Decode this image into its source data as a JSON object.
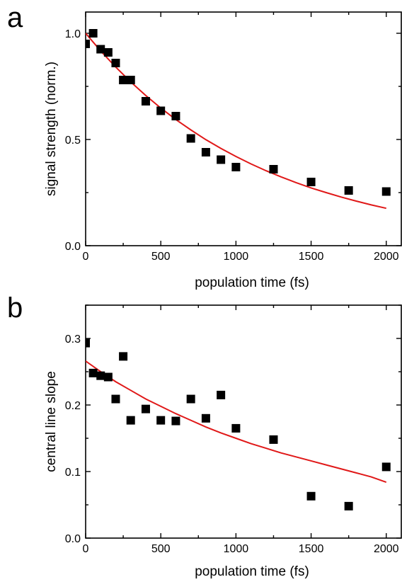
{
  "chart_data": [
    {
      "panel_label": "a",
      "type": "scatter",
      "xlabel": "population time (fs)",
      "ylabel": "signal strength (norm.)",
      "xlim": [
        0,
        2100
      ],
      "ylim": [
        0.0,
        1.1
      ],
      "x_ticks": [
        0,
        500,
        1000,
        1500,
        2000
      ],
      "x_tick_labels": [
        "0",
        "500",
        "1000",
        "1500",
        "2000"
      ],
      "y_ticks": [
        0.0,
        0.5,
        1.0
      ],
      "y_tick_labels": [
        "0.0",
        "0.5",
        "1.0"
      ],
      "grid": false,
      "legend": "none",
      "series": [
        {
          "kind": "points",
          "marker": "square",
          "color": "#000000",
          "x": [
            0,
            50,
            100,
            150,
            200,
            250,
            300,
            400,
            500,
            600,
            700,
            800,
            900,
            1000,
            1250,
            1500,
            1750,
            2000
          ],
          "y": [
            0.95,
            1.0,
            0.925,
            0.91,
            0.86,
            0.78,
            0.78,
            0.68,
            0.635,
            0.61,
            0.505,
            0.44,
            0.405,
            0.37,
            0.36,
            0.3,
            0.26,
            0.255
          ]
        },
        {
          "kind": "line",
          "color": "#e01818",
          "x": [
            0,
            100,
            200,
            300,
            400,
            500,
            600,
            700,
            800,
            900,
            1000,
            1100,
            1200,
            1300,
            1400,
            1500,
            1600,
            1700,
            1800,
            1900,
            2000
          ],
          "y": [
            1.0,
            0.917,
            0.841,
            0.771,
            0.707,
            0.648,
            0.594,
            0.545,
            0.499,
            0.458,
            0.42,
            0.385,
            0.353,
            0.324,
            0.297,
            0.272,
            0.25,
            0.229,
            0.21,
            0.192,
            0.176
          ]
        }
      ]
    },
    {
      "panel_label": "b",
      "type": "scatter",
      "xlabel": "population time (fs)",
      "ylabel": "central line slope",
      "xlim": [
        0,
        2100
      ],
      "ylim": [
        0.0,
        0.35
      ],
      "x_ticks": [
        0,
        500,
        1000,
        1500,
        2000
      ],
      "x_tick_labels": [
        "0",
        "500",
        "1000",
        "1500",
        "2000"
      ],
      "y_ticks": [
        0.0,
        0.1,
        0.2,
        0.3
      ],
      "y_tick_labels": [
        "0.0",
        "0.1",
        "0.2",
        "0.3"
      ],
      "grid": false,
      "legend": "none",
      "series": [
        {
          "kind": "points",
          "marker": "square",
          "color": "#000000",
          "x": [
            0,
            50,
            100,
            150,
            200,
            250,
            300,
            400,
            500,
            600,
            700,
            800,
            900,
            1000,
            1250,
            1500,
            1750,
            2000
          ],
          "y": [
            0.293,
            0.248,
            0.244,
            0.242,
            0.209,
            0.273,
            0.177,
            0.194,
            0.177,
            0.176,
            0.209,
            0.18,
            0.215,
            0.165,
            0.148,
            0.063,
            0.048,
            0.107
          ]
        },
        {
          "kind": "line",
          "color": "#e01818",
          "x": [
            0,
            100,
            200,
            300,
            400,
            500,
            600,
            700,
            800,
            900,
            1000,
            1100,
            1200,
            1300,
            1400,
            1500,
            1600,
            1700,
            1800,
            1900,
            2000
          ],
          "y": [
            0.266,
            0.25,
            0.235,
            0.222,
            0.209,
            0.198,
            0.187,
            0.177,
            0.167,
            0.158,
            0.15,
            0.142,
            0.135,
            0.128,
            0.122,
            0.116,
            0.11,
            0.104,
            0.098,
            0.092,
            0.084
          ]
        }
      ]
    }
  ]
}
